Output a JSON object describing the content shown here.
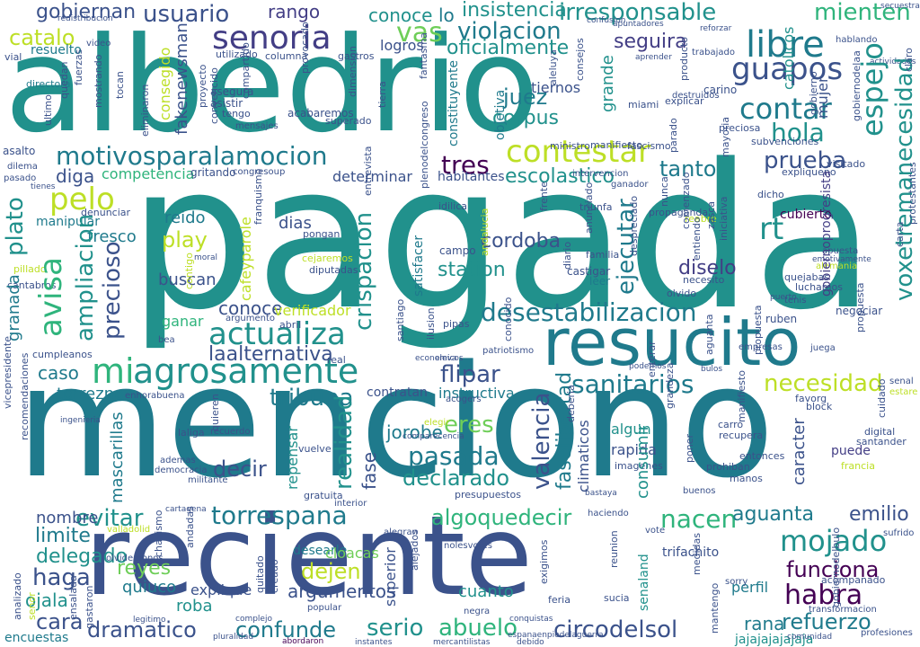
{
  "palette": {
    "teal": "#21918c",
    "green": "#2fb47c",
    "darkteal": "#1f7a8c",
    "blue": "#3b528b",
    "navy": "#433e85",
    "purple": "#440154",
    "violet": "#482878",
    "lime": "#6ece58",
    "yellow": "#bddf26",
    "brightyellow": "#dde318"
  },
  "words": {
    "pagada": "pagada",
    "menciono": "menciono",
    "albedrio": "albedrio",
    "reciente": "reciente",
    "resucito": "resucito",
    "agrosamente": "agrosamente",
    "motivosparalamocion": "motivosparalamocion",
    "actualiza": "actualiza",
    "desestabilizacion": "desestabilizacion",
    "contestar": "contestar",
    "senoria": "senoria",
    "irresponsable": "irresponsable",
    "mienten": "mienten",
    "libre": "libre",
    "guapos": "guapos",
    "espejo": "espejo",
    "voxetremanecesidad": "voxetremanecesidad",
    "contar": "contar",
    "hola": "hola",
    "violacion": "violacion",
    "oficialmente": "oficialmente",
    "seguira": "seguira",
    "insistencia": "insistencia",
    "usuario": "usuario",
    "gobiernan": "gobiernan",
    "rango": "rango",
    "conoce": "conoce",
    "lo": "lo",
    "catalo": "catalo",
    "vas": "vas",
    "juez": "juez",
    "corpus": "corpus",
    "tres": "tres",
    "escolastico": "escolastico",
    "tanto": "tanto",
    "prueba": "prueba",
    "pelo": "pelo",
    "plato": "plato",
    "avisa": "avisa",
    "ampliacion": "ampliacion",
    "precioso": "precioso",
    "crispacion": "crispacion",
    "cordoba": "cordoba",
    "station": "station",
    "ejecutar": "ejecutar",
    "diselo": "diselo",
    "rt": "rt",
    "mi": "mi",
    "laalternativa": "laalternativa",
    "tribuna": "tribuna",
    "realidad": "realidad",
    "flipar": "flipar",
    "sanitarios": "sanitarios",
    "necesidad": "necesidad",
    "valencia": "valencia",
    "fase": "fase",
    "pasada": "pasada",
    "declarado": "declarado",
    "eres": "eres",
    "decir": "decir",
    "evitar": "evitar",
    "torrespana": "torrespana",
    "algoquedecir": "algoquedecir",
    "nacen": "nacen",
    "aguanta": "aguanta",
    "mojado": "mojado",
    "funciona": "funciona",
    "habra": "habra",
    "emilio": "emilio",
    "reyes": "reyes",
    "dejen": "dejen",
    "argumentos": "argumentos",
    "limite": "limite",
    "delegado": "delegado",
    "haga": "haga",
    "ojala": "ojala",
    "cara": "cara",
    "dramatico": "dramatico",
    "confunde": "confunde",
    "serio": "serio",
    "abuelo": "abuelo",
    "circodelsol": "circodelsol",
    "refuerzo": "refuerzo",
    "rana": "rana",
    "jajajajajajaja": "jajajajajajaja",
    "roba": "roba",
    "nombre": "nombre",
    "caso": "caso",
    "torreznos": "torreznos",
    "cuanto": "cuanto",
    "diga": "diga",
    "competencia": "competencia",
    "play": "play",
    "fresco": "fresco",
    "cafeyparole": "cafeyparole",
    "reido": "reido",
    "buscan": "buscan",
    "dias": "dias",
    "ganar": "ganar",
    "conoce2": "conoce",
    "granada": "granada",
    "mascarillas": "mascarillas",
    "fakenewsman": "fakenewsman",
    "consegido": "consegido",
    "grande": "grande",
    "constituyente": "constituyente",
    "objetiva": "objetiva",
    "mujer": "mujer",
    "catolicos": "catolicos",
    "jorobe": "jorobe",
    "superior": "superior",
    "caracter": "caracter",
    "consumir": "consumir",
    "instructiva": "instructiva",
    "contratan": "contratan",
    "cubierto": "cubierto",
    "tiernos": "tiernos",
    "habitantes": "habitantes",
    "determinar": "determinar",
    "andalucia": "andalucia",
    "santiago": "santiago",
    "logros": "logros",
    "explique": "explique",
    "gritando": "gritando",
    "manipular": "manipular",
    "sigamos": "sigamos",
    "satisfacer": "satisfacer",
    "verificador": "verificador",
    "puede": "puede",
    "rapida": "rapida",
    "algun": "algun",
    "quiuco": "quiuco",
    "desearle": "desearle",
    "vivas": "vivas",
    "encuestas": "encuestas",
    "abordaron": "abordaron",
    "instantes": "instantes",
    "trifachito": "trifachito",
    "cloacas": "cloacas",
    "senaland": "senaland",
    "climaticos": "climaticos",
    "faselibertad": "faselibertad",
    "moral": "moral",
    "repensar": "repensar",
    "perfil": "perfil",
    "deberia": "deberia",
    "vicepresidente": "vicepresidente",
    "entrevista": "entrevista",
    "plenodelcongreso": "plenodelcongreso",
    "redistribucion": "redistribucion",
    "fantasma": "fantasma",
    "gastros": "gastros",
    "resuelto": "resuelto",
    "acabaremos": "acabaremos",
    "superado": "superado",
    "utilizado": "utilizado",
    "asistir": "asistir",
    "asegura": "asegura",
    "compartido": "compartido",
    "columna": "columna",
    "directora": "directora",
    "convencido": "convencido",
    "manifiesto": "manifiesto",
    "ministro": "ministro",
    "fascismo": "fascismo",
    "intervencion": "intervencion",
    "ganador": "ganador",
    "despreciado": "despreciado",
    "idilica": "idilica",
    "triunfa": "triunfa",
    "propaganda": "propaganda",
    "castigar": "castigar",
    "leer": "leer",
    "pongan": "pongan",
    "cejaremos": "cejaremos",
    "diputadas": "diputadas",
    "ruben": "ruben",
    "negociar": "negociar",
    "patriotismo": "patriotismo",
    "economicos": "economicos",
    "cumpleanos": "cumpleanos",
    "enhorabuena": "enhorabuena",
    "bastaya": "bastaya",
    "presupuestos": "presupuestos",
    "gratuita": "gratuita",
    "comparecencia": "comparecencia",
    "recupera": "recupera",
    "entonces": "entonces",
    "prohiban": "prohiban",
    "manos": "manos",
    "acompanado": "acompanado",
    "sufrido": "sufrido",
    "digital": "digital",
    "santander": "santander",
    "haciendo": "haciendo",
    "negra": "negra",
    "popular": "popular",
    "complejo": "complejo",
    "legitimo": "legitimo",
    "pluralidad": "pluralidad",
    "mercantilistas": "mercantilistas",
    "debido": "debido",
    "conquistas": "conquistas",
    "feria": "feria",
    "sucia": "sucia",
    "nolesvotes": "nolesvotes",
    "transformacion": "transformacion",
    "comunidad": "comunidad",
    "profesiones": "profesiones",
    "puerto": "puerto",
    "olvido": "olvido",
    "necesito": "necesito",
    "quejabas": "quejabas",
    "luchamos": "luchamos",
    "alemania": "alemania",
    "tenis": "tenis",
    "manifiesto2": "manifiesto",
    "subvenciones": "subvenciones",
    "visitado": "visitado",
    "expliqueno": "expliqueno",
    "carino": "carino",
    "destruidos": "destruidos",
    "preciosa": "preciosa",
    "explicar": "explicar",
    "miami": "miami",
    "trabajado": "trabajado",
    "hablando": "hablando",
    "reforzar": "reforzar",
    "apuntadores": "apuntadores",
    "confusion": "confusion",
    "secuestra": "secuestra",
    "aprender": "aprender",
    "vial": "vial",
    "asalto": "asalto",
    "dilema": "dilema",
    "pasado": "pasado",
    "cantabros": "cantabros",
    "pillado": "pillado",
    "tienes": "tienes",
    "denunciar": "denunciar",
    "eliminaron": "eliminaron",
    "proyecto": "proyecto",
    "gobiernodelaa": "gobiernodelaa",
    "tengo": "tengo",
    "congresoup": "congresoup",
    "franquismo": "franquismo",
    "real": "real",
    "abril": "abril",
    "vuelve": "vuelve",
    "elegir": "elegir",
    "imagenes": "imagenes",
    "block": "block",
    "favorg": "favorg",
    "carro": "carro",
    "francia": "francia",
    "grandeza": "grandeza",
    "enterar": "enterar",
    "reabre": "reabre",
    "campo": "campo",
    "familia": "familia",
    "diario": "diario",
    "anunciado": "anunciado",
    "dicho": "dicho",
    "entiendo": "entiendo",
    "cuidado": "cuidado",
    "senal": "senal",
    "estare": "estare",
    "bea": "bea",
    "buenos": "buenos",
    "sorry": "sorry",
    "poner": "poner",
    "ademas": "ademas",
    "democracia": "democracia",
    "militante": "militante",
    "comenzado": "comenzado",
    "zasca": "zasca",
    "acogers": "acogers",
    "eleva": "eleva",
    "pipas": "pipas",
    "ilusion": "ilusion",
    "conocido": "conocido",
    "argumento": "argumento",
    "aguanta2": "aguanta",
    "juega": "juega",
    "empresas": "empresas",
    "propuesta": "propuesta",
    "vote": "vote",
    "creado": "creado",
    "quitado": "quitado",
    "alegran": "alegran",
    "interior": "interior",
    "cartagena": "cartagena",
    "andadas": "andadas",
    "valladolid": "valladolid",
    "olvidemonos": "olvidemonos",
    "gastaron": "gastaron",
    "ensalada": "ensalada",
    "analizado": "analizado",
    "senor": "senor",
    "consejos": "consejos",
    "aleluya": "aleluya",
    "ingenieria": "ingenieria",
    "provocado": "provocado",
    "laliga": "laliga",
    "recuerdo": "recuerdo",
    "mensajes": "mensajes",
    "protestantes": "protestantes",
    "actividades": "actividades",
    "ultimo": "ultimo",
    "quedan": "quedan",
    "chavismo": "chavismo",
    "medidas": "medidas",
    "mostrando": "mostrando",
    "tocan": "tocan",
    "video": "video",
    "fuerzas": "fuerzas",
    "claro": "claro",
    "producto": "producto",
    "mayoria": "mayoria",
    "carta": "carta",
    "contigo": "contigo",
    "exigimos": "exigimos",
    "iniciativa": "iniciativa",
    "frente": "frente",
    "nunca": "nunca",
    "parado": "parado",
    "gobierno": "gobierno",
    "quieren": "quieren",
    "tierra": "tierra",
    "dimension": "dimension",
    "apuesta": "apuesta",
    "emotivamente": "emotivamente",
    "propuesta2": "propuesta",
    "gobiernoprogresista": "gobiernoprogresista",
    "gobiernodelbulo": "gobiernodelbulo",
    "recomendaciones": "recomendaciones",
    "espanaenpiedelaguerra": "espanaenpiedelaguerra",
    "mantengo": "mantengo",
    "alejados": "alejados",
    "reunion": "reunion",
    "podemos": "podemos",
    "bulos": "bulos"
  }
}
